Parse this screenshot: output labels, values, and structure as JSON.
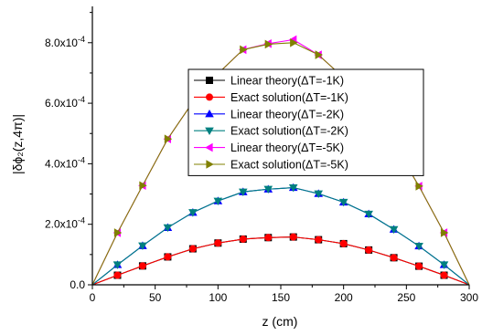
{
  "chart_data": {
    "type": "line",
    "xlabel": "z (cm)",
    "ylabel": "|δϕ₂(z,4π)|",
    "xlim": [
      0,
      300
    ],
    "ylim": [
      0,
      0.00092
    ],
    "x_ticks": [
      0,
      50,
      100,
      150,
      200,
      250,
      300
    ],
    "y_ticks": [
      0,
      0.0002,
      0.0004,
      0.0006,
      0.0008
    ],
    "x_tick_labels": [
      "0",
      "50",
      "100",
      "150",
      "200",
      "250",
      "300"
    ],
    "y_tick_labels": [
      {
        "mantissa": "0.0",
        "exp": ""
      },
      {
        "mantissa": "2.0x10",
        "exp": "-4"
      },
      {
        "mantissa": "4.0x10",
        "exp": "-4"
      },
      {
        "mantissa": "6.0x10",
        "exp": "-4"
      },
      {
        "mantissa": "8.0x10",
        "exp": "-4"
      }
    ],
    "grid": false,
    "legend_position": "center-right",
    "x": [
      0,
      20,
      40,
      60,
      80,
      100,
      120,
      140,
      160,
      180,
      200,
      220,
      240,
      260,
      280,
      300
    ],
    "series": [
      {
        "name": "Linear theory(ΔT=-1K)",
        "color": "#000000",
        "marker": "square",
        "values": [
          0,
          3.16e-05,
          6.24e-05,
          9.22e-05,
          0.000119,
          0.000138,
          0.000151,
          0.000156,
          0.000158,
          0.000149,
          0.000136,
          0.000115,
          8.95e-05,
          6.15e-05,
          3.16e-05,
          0
        ]
      },
      {
        "name": "Exact solution(ΔT=-1K)",
        "color": "#ff0000",
        "marker": "circle",
        "values": [
          0,
          3.16e-05,
          6.24e-05,
          9.22e-05,
          0.000119,
          0.000138,
          0.000151,
          0.000156,
          0.000158,
          0.000149,
          0.000136,
          0.000115,
          8.95e-05,
          6.15e-05,
          3.16e-05,
          0
        ]
      },
      {
        "name": "Linear theory(ΔT=-2K)",
        "color": "#0000ff",
        "marker": "triangle-up",
        "values": [
          0,
          6.63e-05,
          0.000129,
          0.000189,
          0.000239,
          0.000277,
          0.000307,
          0.000316,
          0.000321,
          0.000301,
          0.000273,
          0.000234,
          0.000183,
          0.000128,
          6.63e-05,
          0
        ]
      },
      {
        "name": "Exact solution(ΔT=-2K)",
        "color": "#008080",
        "marker": "triangle-down",
        "values": [
          0,
          6.63e-05,
          0.000129,
          0.000189,
          0.000239,
          0.000277,
          0.000307,
          0.000316,
          0.000321,
          0.000301,
          0.000273,
          0.000234,
          0.000183,
          0.000128,
          6.63e-05,
          0
        ]
      },
      {
        "name": "Linear theory(ΔT=-5K)",
        "color": "#ff00ff",
        "marker": "triangle-left",
        "values": [
          0,
          0.000172,
          0.000328,
          0.000482,
          0.000604,
          0.000698,
          0.000777,
          0.000797,
          0.00081,
          0.00076,
          0.000684,
          0.00059,
          0.000466,
          0.000326,
          0.000172,
          0
        ]
      },
      {
        "name": "Exact solution(ΔT=-5K)",
        "color": "#808000",
        "marker": "triangle-right",
        "values": [
          0,
          0.000172,
          0.000328,
          0.000482,
          0.000604,
          0.000698,
          0.000777,
          0.000795,
          0.0008,
          0.00076,
          0.000684,
          0.00059,
          0.000466,
          0.000326,
          0.000172,
          0
        ]
      }
    ]
  }
}
